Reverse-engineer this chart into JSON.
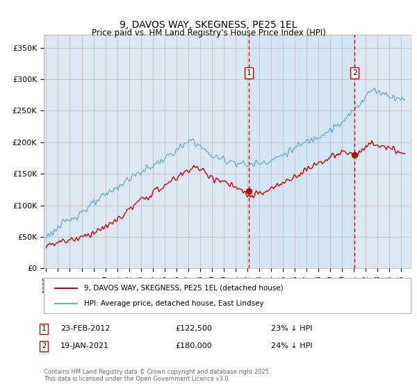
{
  "title": "9, DAVOS WAY, SKEGNESS, PE25 1EL",
  "subtitle": "Price paid vs. HM Land Registry's House Price Index (HPI)",
  "ylabel_ticks": [
    "£0",
    "£50K",
    "£100K",
    "£150K",
    "£200K",
    "£250K",
    "£300K",
    "£350K"
  ],
  "ytick_values": [
    0,
    50000,
    100000,
    150000,
    200000,
    250000,
    300000,
    350000
  ],
  "ylim": [
    0,
    370000
  ],
  "xlim_start": 1994.8,
  "xlim_end": 2025.8,
  "hpi_color": "#6aaed6",
  "price_color": "#cc0000",
  "vline_color": "#cc0000",
  "shade_color": "#d0e4f5",
  "grid_color": "#bbbbbb",
  "bg_color": "#dce9f5",
  "sale1_x": 2012.14,
  "sale1_y": 122500,
  "sale2_x": 2021.05,
  "sale2_y": 180000,
  "sale1_label": "23-FEB-2012",
  "sale1_price": "£122,500",
  "sale1_hpi": "23% ↓ HPI",
  "sale2_label": "19-JAN-2021",
  "sale2_price": "£180,000",
  "sale2_hpi": "24% ↓ HPI",
  "legend_line1": "9, DAVOS WAY, SKEGNESS, PE25 1EL (detached house)",
  "legend_line2": "HPI: Average price, detached house, East Lindsey",
  "footer": "Contains HM Land Registry data © Crown copyright and database right 2025.\nThis data is licensed under the Open Government Licence v3.0."
}
